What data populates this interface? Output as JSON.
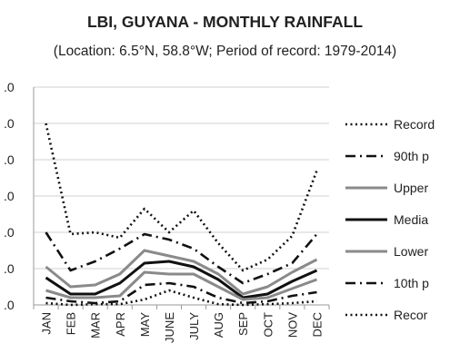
{
  "chart_data": {
    "type": "line",
    "title": "LBI, GUYANA - MONTHLY RAINFALL",
    "subtitle": "(Location: 6.5°N, 58.8°W; Period of record: 1979-2014)",
    "categories": [
      "JAN",
      "FEB",
      "MAR",
      "APR",
      "MAY",
      "JUNE",
      "JULY",
      "AUG",
      "SEP",
      "OCT",
      "NOV",
      "DEC"
    ],
    "y_tick_labels": [
      ".0",
      ".0",
      ".0",
      ".0",
      ".0",
      ".0",
      ".0"
    ],
    "ylim": [
      0,
      6
    ],
    "grid": true,
    "legend_position": "right",
    "series": [
      {
        "name": "Record",
        "style": "dotted-black",
        "values": [
          5.0,
          1.95,
          2.0,
          1.85,
          2.65,
          2.0,
          2.6,
          1.7,
          0.95,
          1.25,
          1.9,
          3.7
        ]
      },
      {
        "name": "90th p",
        "style": "dashdot-black",
        "values": [
          2.0,
          0.95,
          1.2,
          1.55,
          1.95,
          1.8,
          1.55,
          1.05,
          0.6,
          0.85,
          1.15,
          1.95
        ]
      },
      {
        "name": "Upper",
        "style": "solid-gray",
        "values": [
          1.05,
          0.5,
          0.55,
          0.85,
          1.5,
          1.35,
          1.2,
          0.85,
          0.3,
          0.5,
          0.9,
          1.25
        ]
      },
      {
        "name": "Media",
        "style": "solid-black",
        "values": [
          0.75,
          0.3,
          0.3,
          0.6,
          1.15,
          1.2,
          1.05,
          0.7,
          0.2,
          0.3,
          0.65,
          0.95
        ]
      },
      {
        "name": "Lower",
        "style": "solid-gray",
        "values": [
          0.4,
          0.2,
          0.2,
          0.25,
          0.9,
          0.85,
          0.85,
          0.5,
          0.15,
          0.2,
          0.45,
          0.7
        ]
      },
      {
        "name": "10th p",
        "style": "dashdot-black",
        "values": [
          0.2,
          0.1,
          0.05,
          0.1,
          0.55,
          0.6,
          0.5,
          0.2,
          0.05,
          0.1,
          0.25,
          0.35
        ]
      },
      {
        "name": "Recor",
        "style": "dotted-black",
        "values": [
          0.05,
          0.0,
          0.02,
          0.02,
          0.15,
          0.4,
          0.2,
          0.02,
          0.0,
          0.02,
          0.05,
          0.1
        ]
      }
    ]
  }
}
